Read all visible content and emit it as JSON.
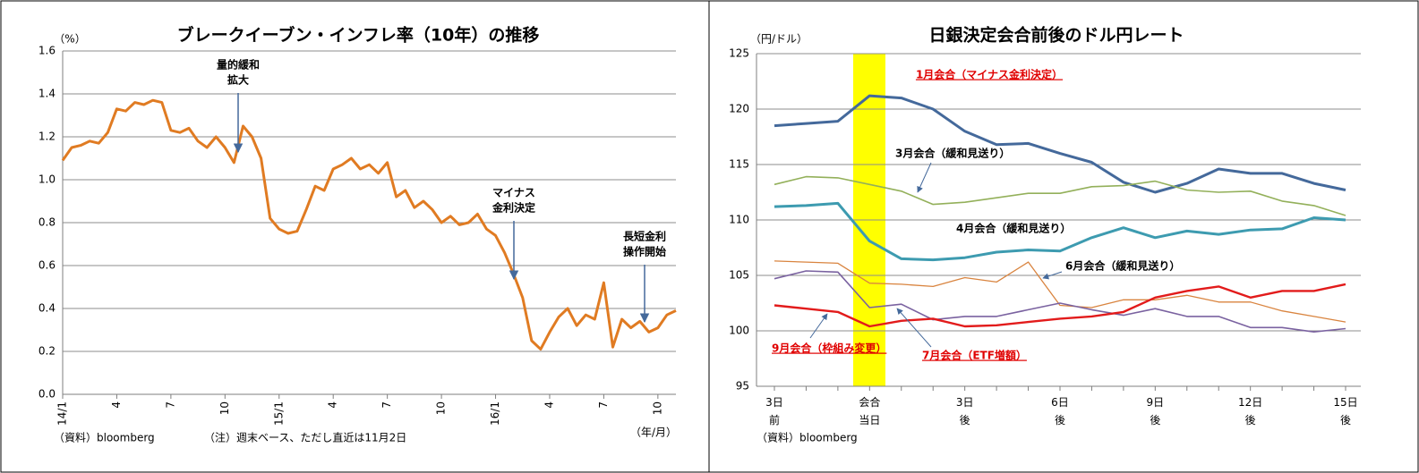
{
  "chart_data": [
    {
      "type": "line",
      "title": "ブレークイーブン・インフレ率（10年）の推移",
      "y_unit": "（%）",
      "x_unit": "（年/月）",
      "source": "（資料）bloomberg",
      "note": "（注）週末ベース、ただし直近は11月2日",
      "categories": [
        "14/1",
        null,
        null,
        null,
        null,
        null,
        "4",
        null,
        null,
        null,
        null,
        null,
        "7",
        null,
        null,
        null,
        null,
        null,
        "10",
        null,
        null,
        null,
        null,
        null,
        "15/1",
        null,
        null,
        null,
        null,
        null,
        "4",
        null,
        null,
        null,
        null,
        null,
        "7",
        null,
        null,
        null,
        null,
        null,
        "10",
        null,
        null,
        null,
        null,
        null,
        "16/1",
        null,
        null,
        null,
        null,
        null,
        "4",
        null,
        null,
        null,
        null,
        null,
        "7",
        null,
        null,
        null,
        null,
        null,
        "10",
        null,
        null
      ],
      "values": [
        1.09,
        1.15,
        1.16,
        1.18,
        1.17,
        1.22,
        1.33,
        1.32,
        1.36,
        1.35,
        1.37,
        1.36,
        1.23,
        1.22,
        1.24,
        1.18,
        1.15,
        1.2,
        1.15,
        1.08,
        1.25,
        1.2,
        1.1,
        0.82,
        0.77,
        0.75,
        0.76,
        0.86,
        0.97,
        0.95,
        1.05,
        1.07,
        1.1,
        1.05,
        1.07,
        1.03,
        1.08,
        0.92,
        0.95,
        0.87,
        0.9,
        0.86,
        0.8,
        0.83,
        0.79,
        0.8,
        0.84,
        0.77,
        0.74,
        0.66,
        0.56,
        0.45,
        0.25,
        0.21,
        0.29,
        0.36,
        0.4,
        0.32,
        0.37,
        0.35,
        0.52,
        0.22,
        0.35,
        0.31,
        0.34,
        0.29,
        0.31,
        0.37,
        0.39
      ],
      "color": "#e07b22",
      "ylim": [
        0,
        1.6
      ],
      "yticks": [
        {
          "value": 0,
          "label": "0.0"
        },
        0.2,
        0.4,
        0.6,
        0.8,
        {
          "value": 1,
          "label": "1.0"
        },
        1.2,
        1.4,
        1.6
      ],
      "grid": true,
      "annotations": [
        {
          "text": [
            "量的緩和",
            "拡大"
          ]
        },
        {
          "text": [
            "マイナス",
            "金利決定"
          ]
        },
        {
          "text": [
            "長短金利",
            "操作開始"
          ]
        }
      ]
    },
    {
      "type": "line",
      "title": "日銀決定会合前後のドル円レート",
      "y_unit": "（円/ドル）",
      "source": "（資料）bloomberg",
      "categories": [
        "3日\n前",
        null,
        null,
        "会合\n当日",
        null,
        null,
        "3日\n後",
        null,
        null,
        "6日\n後",
        null,
        null,
        "9日\n後",
        null,
        null,
        "12日\n後",
        null,
        null,
        "15日\n後"
      ],
      "ylim": [
        95,
        125
      ],
      "yticks": [
        95,
        100,
        105,
        110,
        115,
        120,
        125
      ],
      "grid": true,
      "series": [
        {
          "name": "1月会合（マイナス金利決定）",
          "color": "#44699b",
          "label_color": "#e00000",
          "values": [
            118.5,
            118.7,
            118.9,
            121.2,
            121.0,
            120.0,
            118.0,
            116.8,
            116.9,
            116.0,
            115.2,
            113.4,
            112.5,
            113.3,
            114.6,
            114.2,
            114.2,
            113.3,
            112.7
          ]
        },
        {
          "name": "3月会合（緩和見送り）",
          "color": "#93b05a",
          "label_color": "#000000",
          "values": [
            113.2,
            113.9,
            113.8,
            113.2,
            112.6,
            111.4,
            111.6,
            112.0,
            112.4,
            112.4,
            113.0,
            113.1,
            113.5,
            112.7,
            112.5,
            112.6,
            111.7,
            111.3,
            110.4
          ]
        },
        {
          "name": "4月会合（緩和見送り）",
          "color": "#3d9bb0",
          "label_color": "#000000",
          "values": [
            111.2,
            111.3,
            111.5,
            108.1,
            106.5,
            106.4,
            106.6,
            107.1,
            107.3,
            107.2,
            108.4,
            109.3,
            108.4,
            109.0,
            108.7,
            109.1,
            109.2,
            110.2,
            110.0
          ]
        },
        {
          "name": "6月会合（緩和見送り）",
          "color": "#d9843f",
          "label_color": "#000000",
          "values": [
            106.3,
            106.2,
            106.1,
            104.3,
            104.2,
            104.0,
            104.8,
            104.4,
            106.2,
            102.3,
            102.1,
            102.8,
            102.8,
            103.2,
            102.6,
            102.6,
            101.8,
            101.3,
            100.8
          ]
        },
        {
          "name": "7月会合（ETF増額）",
          "color": "#7a62a0",
          "label_color": "#e00000",
          "values": [
            104.7,
            105.4,
            105.3,
            102.1,
            102.4,
            101.0,
            101.3,
            101.3,
            101.9,
            102.5,
            101.9,
            101.4,
            102.0,
            101.3,
            101.3,
            100.3,
            100.3,
            99.9,
            100.2
          ]
        },
        {
          "name": "9月会合（枠組み変更）",
          "color": "#e21b1b",
          "label_color": "#e00000",
          "values": [
            102.3,
            102.0,
            101.7,
            100.4,
            100.9,
            101.1,
            100.4,
            100.5,
            100.8,
            101.1,
            101.3,
            101.7,
            103.0,
            103.6,
            104.0,
            103.0,
            103.6,
            103.6,
            104.2
          ]
        }
      ]
    }
  ]
}
